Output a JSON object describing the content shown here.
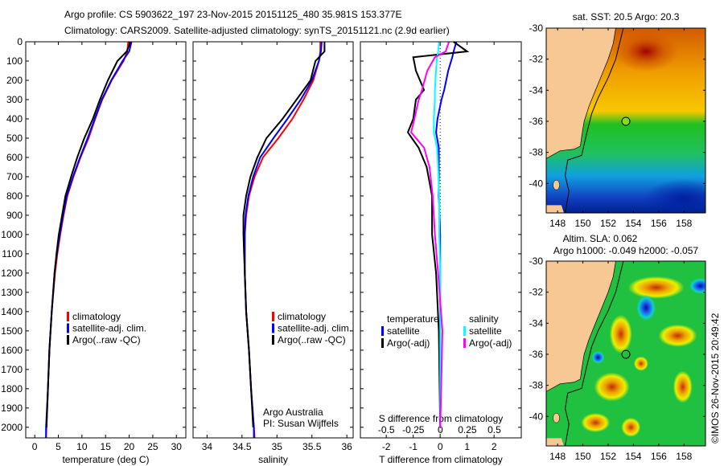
{
  "title": {
    "line1": "Argo profile: CS 5903622_197 23-Nov-2015 20151125_480 35.981S 153.377E",
    "line2": "Climatology: CARS2009. Satellite-adjusted climatology: synTS_20151121.nc (2.9d earlier)"
  },
  "credit": {
    "line1": "Argo Australia",
    "line2": "PI: Susan Wijffels"
  },
  "copyright": "©IMOS 26-Nov-2015 20:49:42",
  "colors": {
    "climatology": "#ff0000",
    "satellite": "#0000ff",
    "argo": "#000000",
    "sal_satellite": "#00ffff",
    "sal_argo": "#ff00ff"
  },
  "chart_data": [
    {
      "type": "line",
      "xlabel": "temperature (deg C)",
      "ylabel": "",
      "xlim": [
        -1.9,
        32
      ],
      "ylim": [
        2055,
        0
      ],
      "xticks": [
        "0",
        "5",
        "10",
        "15",
        "20",
        "25",
        "30"
      ],
      "yticks": [
        "0",
        "100",
        "200",
        "300",
        "400",
        "500",
        "600",
        "700",
        "800",
        "900",
        "1000",
        "1100",
        "1200",
        "1300",
        "1400",
        "1500",
        "1600",
        "1700",
        "1800",
        "1900",
        "2000"
      ],
      "legend": [
        "climatology",
        "satellite-adj. clim.",
        "Argo(..raw -QC)"
      ],
      "depth": [
        0,
        50,
        100,
        200,
        300,
        400,
        500,
        600,
        700,
        800,
        900,
        1000,
        1100,
        1200,
        1400,
        1600,
        1800,
        2000,
        2055
      ],
      "series": [
        {
          "name": "climatology",
          "color": "#ff0000",
          "values": [
            19.8,
            19.6,
            18.8,
            16.3,
            14.3,
            12.8,
            11.4,
            9.7,
            8.2,
            6.9,
            6.1,
            5.4,
            4.8,
            4.3,
            3.6,
            3.1,
            2.8,
            2.5,
            2.4
          ]
        },
        {
          "name": "satellite-adj. clim.",
          "color": "#0000ff",
          "values": [
            20.5,
            20.0,
            18.6,
            16.2,
            14.2,
            12.7,
            11.2,
            9.6,
            8.1,
            6.8,
            6.0,
            5.3,
            4.7,
            4.2,
            3.6,
            3.1,
            2.8,
            2.4,
            2.4
          ]
        },
        {
          "name": "Argo(..raw -QC)",
          "color": "#000000",
          "values": [
            20.3,
            19.5,
            17.5,
            15.5,
            13.8,
            12.3,
            10.5,
            9.0,
            7.7,
            6.5,
            5.8,
            5.1,
            4.6,
            4.2,
            3.6,
            3.1,
            2.8,
            2.5
          ]
        }
      ]
    },
    {
      "type": "line",
      "xlabel": "salinity",
      "xlim": [
        33.8,
        36.09
      ],
      "ylim": [
        2055,
        0
      ],
      "xticks": [
        "34",
        "34.5",
        "35",
        "35.5",
        "36"
      ],
      "legend": [
        "climatology",
        "satellite-adj. clim.",
        "Argo(..raw -QC)"
      ],
      "depth": [
        0,
        50,
        100,
        200,
        300,
        400,
        500,
        600,
        700,
        800,
        900,
        1000,
        1100,
        1200,
        1400,
        1600,
        1800,
        2000,
        2055
      ],
      "series": [
        {
          "name": "climatology",
          "color": "#ff0000",
          "values": [
            35.62,
            35.62,
            35.6,
            35.52,
            35.38,
            35.22,
            35.02,
            34.8,
            34.68,
            34.6,
            34.56,
            34.54,
            34.54,
            34.54,
            34.56,
            34.6,
            34.63,
            34.67,
            34.68
          ]
        },
        {
          "name": "satellite-adj. clim.",
          "color": "#0000ff",
          "values": [
            35.64,
            35.63,
            35.6,
            35.5,
            35.34,
            35.15,
            34.95,
            34.76,
            34.66,
            34.59,
            34.55,
            34.54,
            34.54,
            34.54,
            34.56,
            34.6,
            34.63,
            34.67,
            34.67
          ]
        },
        {
          "name": "Argo(..raw -QC)",
          "color": "#000000",
          "values": [
            35.68,
            35.68,
            35.55,
            35.48,
            35.28,
            35.08,
            34.85,
            34.72,
            34.62,
            34.56,
            34.52,
            34.52,
            34.53,
            34.54,
            34.56,
            34.6,
            34.63,
            34.66
          ]
        }
      ]
    },
    {
      "type": "line",
      "xlabel": "T difference from climatology",
      "xlabel2": "S difference from climatology",
      "xlim": [
        -2.96,
        3.01
      ],
      "xlim2": [
        -0.74,
        0.75
      ],
      "ylim": [
        2055,
        0
      ],
      "xticks": [
        "-2",
        "-1",
        "0",
        "1",
        "2"
      ],
      "xticks2": [
        "-0.5",
        "-0.25",
        "0",
        "0.25",
        "0.5"
      ],
      "legend": {
        "temperature_title": "temperature",
        "salinity_title": "salinity",
        "satellite": "satellite",
        "argo": "Argo(-adj)"
      },
      "depth": [
        0,
        50,
        80,
        150,
        250,
        300,
        400,
        470,
        550,
        650,
        800,
        1000,
        1200,
        1500,
        2000
      ],
      "series": [
        {
          "name": "temperature satellite",
          "axis": "T",
          "color": "#0000ff",
          "values": [
            0.6,
            0.5,
            0.45,
            0.3,
            0.15,
            0.05,
            -0.1,
            -0.15,
            -0.05,
            -0.05,
            -0.05,
            0,
            0,
            0,
            0
          ]
        },
        {
          "name": "temperature Argo(-adj)",
          "axis": "T",
          "color": "#000000",
          "values": [
            0.5,
            1.0,
            -1.0,
            -0.9,
            -0.6,
            -0.9,
            -1.0,
            -1.2,
            -0.8,
            -0.5,
            -0.3,
            -0.3,
            -0.15,
            -0.05,
            0
          ]
        },
        {
          "name": "salinity satellite",
          "axis": "S",
          "color": "#00ffff",
          "values": [
            -0.01,
            -0.02,
            -0.03,
            -0.04,
            -0.05,
            -0.05,
            -0.06,
            -0.06,
            -0.03,
            -0.02,
            -0.01,
            -0.01,
            0,
            0,
            0
          ]
        },
        {
          "name": "salinity Argo(-adj)",
          "axis": "S",
          "color": "#ff00ff",
          "values": [
            0.08,
            0.05,
            -0.05,
            -0.12,
            -0.17,
            -0.2,
            -0.24,
            -0.27,
            -0.15,
            -0.1,
            -0.07,
            -0.05,
            -0.02,
            0.02,
            0
          ]
        }
      ]
    },
    {
      "type": "heatmap",
      "title": "sat. SST: 20.5 Argo: 20.3",
      "xlim": [
        147.1,
        159.7
      ],
      "ylim": [
        -41.9,
        -30
      ],
      "xticks": [
        "148",
        "150",
        "152",
        "154",
        "156",
        "158"
      ],
      "yticks": [
        "-30",
        "-32",
        "-34",
        "-36",
        "-38",
        "-40"
      ],
      "marker": {
        "lon": 153.4,
        "lat": -36.0
      }
    },
    {
      "type": "heatmap",
      "title": "Altim. SLA: 0.062",
      "subtitle": "Argo h1000: -0.049 h2000: -0.057",
      "xlim": [
        147.1,
        159.7
      ],
      "ylim": [
        -41.9,
        -30
      ],
      "xticks": [
        "148",
        "150",
        "152",
        "154",
        "156",
        "158"
      ],
      "yticks": [
        "-30",
        "-32",
        "-34",
        "-36",
        "-38",
        "-40"
      ],
      "marker": {
        "lon": 153.4,
        "lat": -36.0
      }
    }
  ]
}
